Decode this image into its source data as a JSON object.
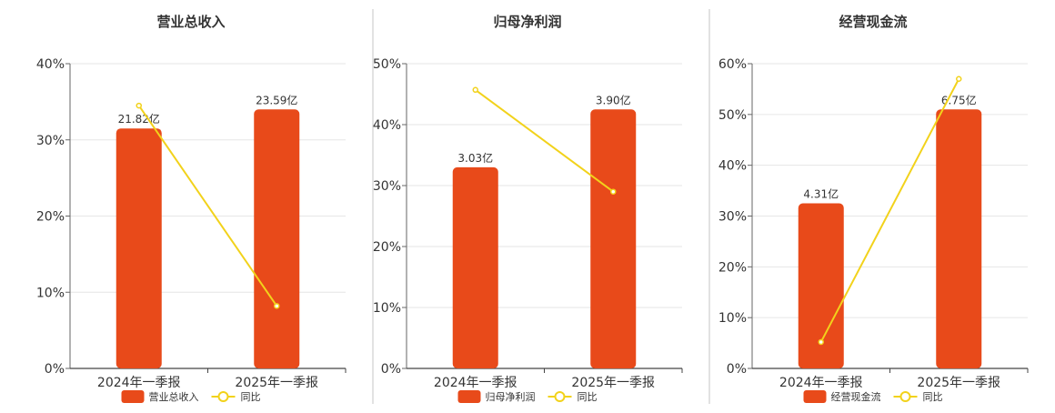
{
  "chart_data": [
    {
      "type": "bar",
      "title": "营业总收入",
      "categories": [
        "2024年一季报",
        "2025年一季报"
      ],
      "series": [
        {
          "name": "营业总收入",
          "values": [
            21.82,
            23.59
          ],
          "labels": [
            "21.82亿",
            "23.59亿"
          ],
          "color": "#E84A1A"
        },
        {
          "name": "同比",
          "type": "line",
          "values": [
            34.5,
            8.2
          ],
          "color": "#F2D21B"
        }
      ],
      "bar_heights_pct": [
        31.5,
        34.0
      ],
      "yticks": [
        "0%",
        "10%",
        "20%",
        "30%",
        "40%"
      ],
      "ylim": [
        0,
        40
      ],
      "legend": "bottom",
      "grid": true
    },
    {
      "type": "bar",
      "title": "归母净利润",
      "categories": [
        "2024年一季报",
        "2025年一季报"
      ],
      "series": [
        {
          "name": "归母净利润",
          "values": [
            3.03,
            3.9
          ],
          "labels": [
            "3.03亿",
            "3.90亿"
          ],
          "color": "#E84A1A"
        },
        {
          "name": "同比",
          "type": "line",
          "values": [
            45.7,
            29.0
          ],
          "color": "#F2D21B"
        }
      ],
      "bar_heights_pct": [
        33.0,
        42.5
      ],
      "yticks": [
        "0%",
        "10%",
        "20%",
        "30%",
        "40%",
        "50%"
      ],
      "ylim": [
        0,
        50
      ],
      "legend": "bottom",
      "grid": true
    },
    {
      "type": "bar",
      "title": "经营现金流",
      "categories": [
        "2024年一季报",
        "2025年一季报"
      ],
      "series": [
        {
          "name": "经营现金流",
          "values": [
            4.31,
            6.75
          ],
          "labels": [
            "4.31亿",
            "6.75亿"
          ],
          "color": "#E84A1A"
        },
        {
          "name": "同比",
          "type": "line",
          "values": [
            5.2,
            57.0
          ],
          "color": "#F2D21B"
        }
      ],
      "bar_heights_pct": [
        32.5,
        51.0
      ],
      "yticks": [
        "0%",
        "10%",
        "20%",
        "30%",
        "40%",
        "50%",
        "60%"
      ],
      "ylim": [
        0,
        60
      ],
      "legend": "bottom",
      "grid": true
    }
  ]
}
